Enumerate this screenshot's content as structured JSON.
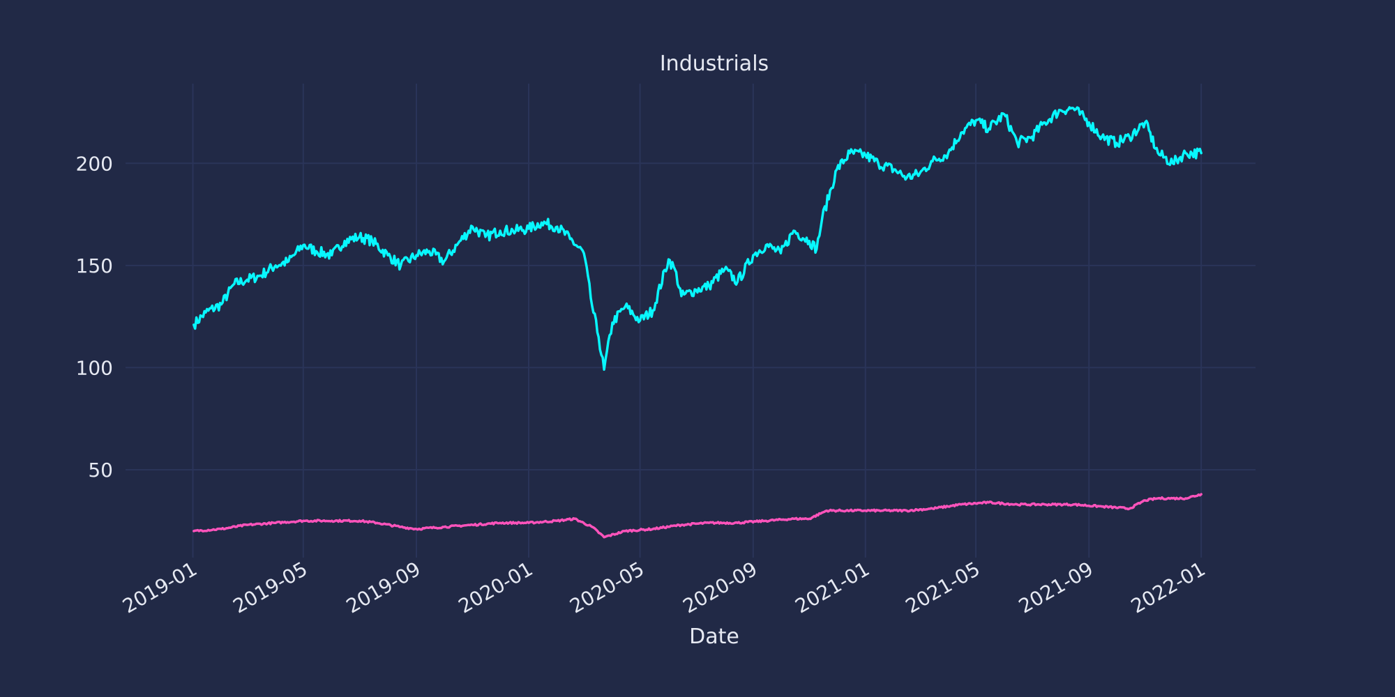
{
  "chart_data": {
    "type": "line",
    "title": "Industrials",
    "xlabel": "Date",
    "ylabel": "",
    "xlim": [
      "2018-11-04",
      "2022-03-01"
    ],
    "ylim": [
      7,
      239
    ],
    "grid": true,
    "background_color": "#212946",
    "grid_color": "#2a3459",
    "x_ticks": [
      "2019-01",
      "2019-05",
      "2019-09",
      "2020-01",
      "2020-05",
      "2020-09",
      "2021-01",
      "2021-05",
      "2021-09",
      "2022-01"
    ],
    "y_ticks": [
      50,
      100,
      150,
      200
    ],
    "series": [
      {
        "color": "#08F7FE",
        "x": [
          "2019-01-02",
          "2019-01-15",
          "2019-02-01",
          "2019-02-15",
          "2019-03-01",
          "2019-03-15",
          "2019-04-01",
          "2019-04-15",
          "2019-05-01",
          "2019-05-15",
          "2019-06-01",
          "2019-06-15",
          "2019-07-01",
          "2019-07-15",
          "2019-08-01",
          "2019-08-15",
          "2019-09-01",
          "2019-09-15",
          "2019-10-01",
          "2019-10-15",
          "2019-11-01",
          "2019-11-15",
          "2019-12-01",
          "2019-12-15",
          "2020-01-01",
          "2020-01-15",
          "2020-02-01",
          "2020-02-15",
          "2020-03-01",
          "2020-03-10",
          "2020-03-17",
          "2020-03-23",
          "2020-04-01",
          "2020-04-15",
          "2020-05-01",
          "2020-05-15",
          "2020-06-01",
          "2020-06-08",
          "2020-06-15",
          "2020-07-01",
          "2020-07-15",
          "2020-08-01",
          "2020-08-15",
          "2020-09-01",
          "2020-09-15",
          "2020-10-01",
          "2020-10-15",
          "2020-11-01",
          "2020-11-09",
          "2020-11-15",
          "2020-12-01",
          "2020-12-15",
          "2021-01-01",
          "2021-01-15",
          "2021-02-01",
          "2021-02-15",
          "2021-03-01",
          "2021-03-15",
          "2021-04-01",
          "2021-04-15",
          "2021-05-01",
          "2021-05-15",
          "2021-06-01",
          "2021-06-15",
          "2021-07-01",
          "2021-07-15",
          "2021-08-01",
          "2021-08-15",
          "2021-09-01",
          "2021-09-15",
          "2021-10-01",
          "2021-10-15",
          "2021-11-01",
          "2021-11-15",
          "2021-12-01",
          "2021-12-15",
          "2022-01-01"
        ],
        "values": [
          121,
          127,
          131,
          141,
          143,
          145,
          150,
          152,
          160,
          157,
          155,
          162,
          164,
          162,
          155,
          150,
          155,
          157,
          152,
          160,
          169,
          164,
          167,
          167,
          168,
          171,
          169,
          163,
          156,
          130,
          115,
          99,
          122,
          130,
          123,
          128,
          153,
          148,
          135,
          138,
          140,
          148,
          142,
          155,
          160,
          156,
          167,
          162,
          158,
          173,
          197,
          205,
          204,
          200,
          197,
          193,
          195,
          201,
          205,
          215,
          221,
          217,
          224,
          210,
          213,
          220,
          226,
          227,
          220,
          213,
          210,
          213,
          220,
          205,
          200,
          205,
          205
        ]
      },
      {
        "color": "#FE53BB",
        "x": [
          "2019-01-02",
          "2019-02-01",
          "2019-03-01",
          "2019-04-01",
          "2019-05-01",
          "2019-06-01",
          "2019-07-01",
          "2019-07-20",
          "2019-08-15",
          "2019-09-01",
          "2019-10-01",
          "2019-11-01",
          "2019-12-01",
          "2020-01-01",
          "2020-02-01",
          "2020-02-20",
          "2020-03-10",
          "2020-03-23",
          "2020-04-15",
          "2020-05-15",
          "2020-06-15",
          "2020-07-15",
          "2020-08-15",
          "2020-09-15",
          "2020-10-15",
          "2020-11-01",
          "2020-11-20",
          "2020-12-15",
          "2021-01-01",
          "2021-01-20",
          "2021-02-15",
          "2021-03-15",
          "2021-04-15",
          "2021-05-15",
          "2021-06-15",
          "2021-07-15",
          "2021-08-15",
          "2021-09-15",
          "2021-10-15",
          "2021-11-01",
          "2021-11-15",
          "2021-12-01",
          "2021-12-15",
          "2022-01-01"
        ],
        "values": [
          20,
          21,
          23,
          24,
          25,
          25,
          25,
          24,
          22,
          21,
          22,
          23,
          24,
          24,
          25,
          26,
          22,
          17,
          20,
          21,
          23,
          24,
          24,
          25,
          26,
          26,
          30,
          30,
          30,
          30,
          30,
          31,
          33,
          34,
          33,
          33,
          33,
          32,
          31,
          35,
          36,
          36,
          36,
          38
        ]
      }
    ]
  }
}
